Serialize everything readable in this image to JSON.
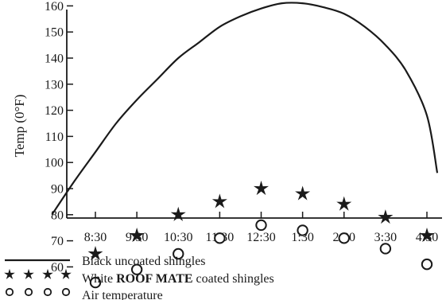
{
  "chart_data": {
    "type": "line",
    "title": "",
    "xlabel": "",
    "ylabel": "Temp (0°F)",
    "categories": [
      "8:30",
      "9:30",
      "10:30",
      "11:30",
      "12:30",
      "1:30",
      "2:30",
      "3:30",
      "4:30"
    ],
    "yticks": [
      60,
      70,
      80,
      90,
      100,
      110,
      120,
      130,
      140,
      150,
      160
    ],
    "ylim": [
      50,
      168
    ],
    "grid": false,
    "legend_position": "bottom-left",
    "series": [
      {
        "name": "Black uncoated shingles",
        "marker": "line",
        "color": "#1a1a1a",
        "x": [
          7.45,
          8,
          8.5,
          9,
          9.5,
          10,
          10.5,
          11,
          11.5,
          12,
          12.5,
          13,
          13.5,
          14,
          14.5,
          15,
          15.5,
          16,
          16.5,
          16.75
        ],
        "values": [
          80,
          93,
          104,
          115,
          124,
          132,
          140,
          146,
          152,
          156,
          159,
          161,
          161,
          159.5,
          157,
          152,
          145,
          135,
          118,
          96
        ]
      },
      {
        "name_prefix": "White",
        "name_bold": "ROOF MATE",
        "name_suffix": "coated shingles",
        "marker": "star",
        "color": "#1a1a1a",
        "values": [
          65,
          72,
          80,
          85,
          90,
          88,
          84,
          79,
          72
        ]
      },
      {
        "name": "Air temperature",
        "marker": "circle",
        "color": "#1a1a1a",
        "values": [
          54,
          59,
          65,
          71,
          76,
          74,
          71,
          67,
          61
        ]
      }
    ]
  }
}
